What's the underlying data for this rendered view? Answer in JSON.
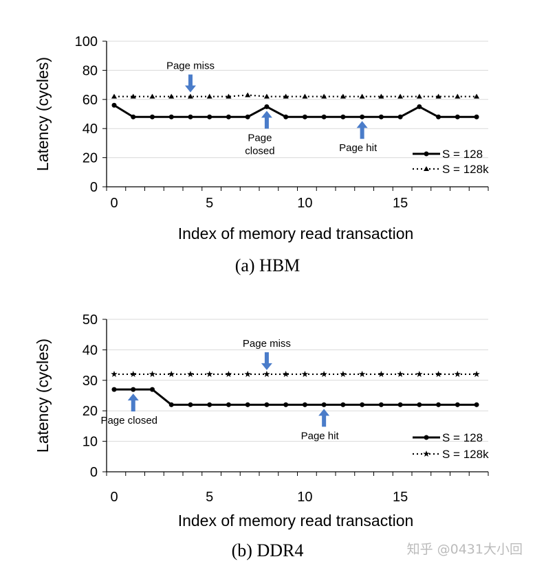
{
  "chart_data": [
    {
      "type": "line",
      "caption": "(a) HBM",
      "xlabel": "Index of memory read transaction",
      "ylabel": "Latency (cycles)",
      "ylim": [
        0,
        100
      ],
      "yticks": [
        0,
        20,
        40,
        60,
        80,
        100
      ],
      "xticks": [
        0,
        5,
        10,
        15
      ],
      "grid": true,
      "legend": "bottom-right",
      "x": [
        0,
        1,
        2,
        3,
        4,
        5,
        6,
        7,
        8,
        9,
        10,
        11,
        12,
        13,
        14,
        15,
        16,
        17,
        18,
        19
      ],
      "series": [
        {
          "name": "S = 128",
          "style": "solid",
          "marker": "circle",
          "values": [
            56,
            48,
            48,
            48,
            48,
            48,
            48,
            48,
            55,
            48,
            48,
            48,
            48,
            48,
            48,
            48,
            55,
            48,
            48,
            48
          ]
        },
        {
          "name": "S = 128k",
          "style": "dotted",
          "marker": "triangle",
          "values": [
            62,
            62,
            62,
            62,
            62,
            62,
            62,
            63,
            62,
            62,
            62,
            62,
            62,
            62,
            62,
            62,
            62,
            62,
            62,
            62
          ]
        }
      ],
      "annotations": [
        {
          "text": "Page miss",
          "x": 4,
          "arrow": "down"
        },
        {
          "text": "Page closed",
          "x": 8,
          "arrow": "up"
        },
        {
          "text": "Page hit",
          "x": 13,
          "arrow": "up"
        }
      ]
    },
    {
      "type": "line",
      "caption": "(b) DDR4",
      "xlabel": "Index of memory read transaction",
      "ylabel": "Latency (cycles)",
      "ylim": [
        0,
        50
      ],
      "yticks": [
        0,
        10,
        20,
        30,
        40,
        50
      ],
      "xticks": [
        0,
        5,
        10,
        15
      ],
      "grid": true,
      "legend": "bottom-right",
      "x": [
        0,
        1,
        2,
        3,
        4,
        5,
        6,
        7,
        8,
        9,
        10,
        11,
        12,
        13,
        14,
        15,
        16,
        17,
        18,
        19
      ],
      "series": [
        {
          "name": "S = 128",
          "style": "solid",
          "marker": "circle",
          "values": [
            27,
            27,
            27,
            22,
            22,
            22,
            22,
            22,
            22,
            22,
            22,
            22,
            22,
            22,
            22,
            22,
            22,
            22,
            22,
            22
          ]
        },
        {
          "name": "S = 128k",
          "style": "dotted",
          "marker": "star",
          "values": [
            32,
            32,
            32,
            32,
            32,
            32,
            32,
            32,
            32,
            32,
            32,
            32,
            32,
            32,
            32,
            32,
            32,
            32,
            32,
            32
          ]
        }
      ],
      "annotations": [
        {
          "text": "Page miss",
          "x": 8,
          "arrow": "down"
        },
        {
          "text": "Page closed",
          "x": 1,
          "arrow": "up"
        },
        {
          "text": "Page hit",
          "x": 11,
          "arrow": "up"
        }
      ]
    }
  ],
  "colors": {
    "arrow": "#4a7cc9",
    "line": "#000000",
    "grid": "#d9d9d9"
  },
  "watermark": "知乎 @0431大小回"
}
